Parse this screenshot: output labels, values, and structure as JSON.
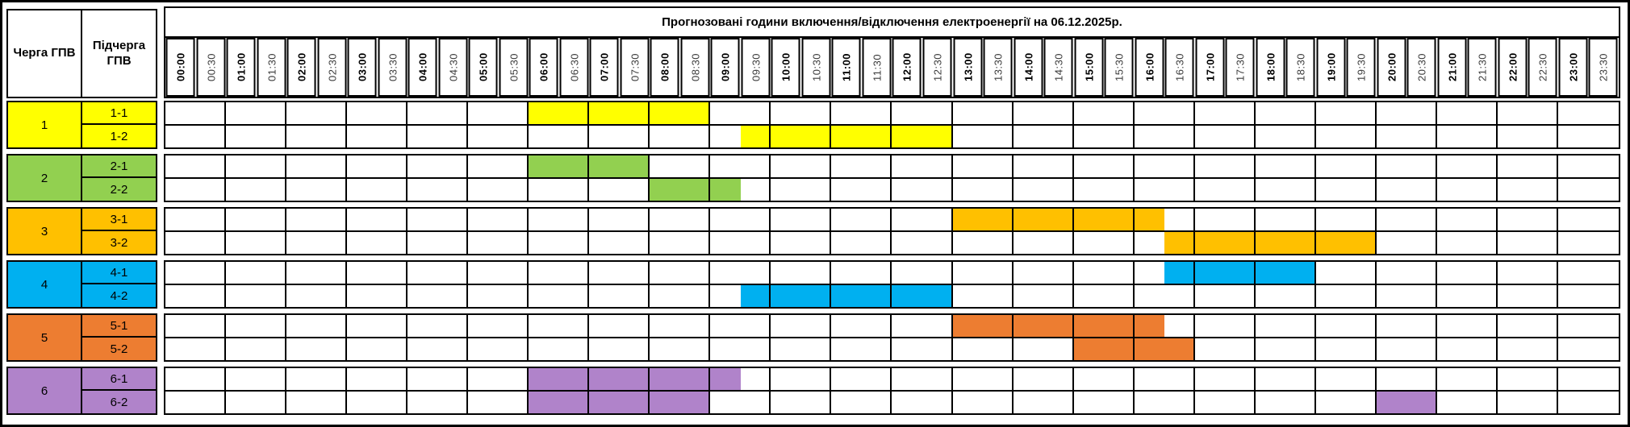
{
  "header": {
    "title": "Прогнозовані години включення/відключення електроенергії на 06.12.2025р."
  },
  "columns": {
    "queue": "Черга ГПВ",
    "subqueue": "Підчерга ГПВ"
  },
  "time_slots": [
    "00:00",
    "00:30",
    "01:00",
    "01:30",
    "02:00",
    "02:30",
    "03:00",
    "03:30",
    "04:00",
    "04:30",
    "05:00",
    "05:30",
    "06:00",
    "06:30",
    "07:00",
    "07:30",
    "08:00",
    "08:30",
    "09:00",
    "09:30",
    "10:00",
    "10:30",
    "11:00",
    "11:30",
    "12:00",
    "12:30",
    "13:00",
    "13:30",
    "14:00",
    "14:30",
    "15:00",
    "15:30",
    "16:00",
    "16:30",
    "17:00",
    "17:30",
    "18:00",
    "18:30",
    "19:00",
    "19:30",
    "20:00",
    "20:30",
    "21:00",
    "21:30",
    "22:00",
    "22:30",
    "23:00",
    "23:30"
  ],
  "chart_data": {
    "type": "gantt",
    "title": "Прогнозовані години включення/відключення електроенергії на 06.12.2025р.",
    "date": "06.12.2025",
    "x_axis": {
      "start": "00:00",
      "end": "24:00",
      "step_minutes": 30
    },
    "queues": [
      {
        "queue": "1",
        "color": "#FFFF00",
        "subqueues": [
          {
            "label": "1-1",
            "off_intervals": [
              {
                "from": "06:00",
                "to": "09:00"
              }
            ]
          },
          {
            "label": "1-2",
            "off_intervals": [
              {
                "from": "09:30",
                "to": "13:00"
              }
            ]
          }
        ]
      },
      {
        "queue": "2",
        "color": "#92D050",
        "subqueues": [
          {
            "label": "2-1",
            "off_intervals": [
              {
                "from": "06:00",
                "to": "08:00"
              }
            ]
          },
          {
            "label": "2-2",
            "off_intervals": [
              {
                "from": "08:00",
                "to": "09:30"
              }
            ]
          }
        ]
      },
      {
        "queue": "3",
        "color": "#FFC000",
        "subqueues": [
          {
            "label": "3-1",
            "off_intervals": [
              {
                "from": "13:00",
                "to": "16:30"
              }
            ]
          },
          {
            "label": "3-2",
            "off_intervals": [
              {
                "from": "16:30",
                "to": "20:00"
              }
            ]
          }
        ]
      },
      {
        "queue": "4",
        "color": "#00B0F0",
        "subqueues": [
          {
            "label": "4-1",
            "off_intervals": [
              {
                "from": "16:30",
                "to": "19:00"
              }
            ]
          },
          {
            "label": "4-2",
            "off_intervals": [
              {
                "from": "09:30",
                "to": "13:00"
              }
            ]
          }
        ]
      },
      {
        "queue": "5",
        "color": "#ED7D31",
        "subqueues": [
          {
            "label": "5-1",
            "off_intervals": [
              {
                "from": "13:00",
                "to": "16:30"
              }
            ]
          },
          {
            "label": "5-2",
            "off_intervals": [
              {
                "from": "15:00",
                "to": "17:00"
              }
            ]
          }
        ]
      },
      {
        "queue": "6",
        "color": "#B083CA",
        "subqueues": [
          {
            "label": "6-1",
            "off_intervals": [
              {
                "from": "06:00",
                "to": "09:30"
              }
            ]
          },
          {
            "label": "6-2",
            "off_intervals": [
              {
                "from": "06:00",
                "to": "09:00"
              },
              {
                "from": "20:00",
                "to": "21:00"
              }
            ]
          }
        ]
      }
    ]
  }
}
